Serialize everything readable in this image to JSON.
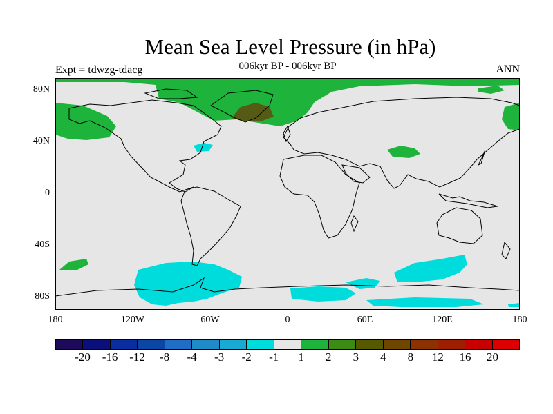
{
  "title": "Mean Sea Level Pressure (in hPa)",
  "subtitle_center": "006kyr BP - 006kyr BP",
  "subtitle_left": "Expt = tdwzg-tdacg",
  "subtitle_right": "ANN",
  "lat_labels": [
    "80N",
    "40N",
    "0",
    "40S",
    "80S"
  ],
  "lon_labels": [
    "180",
    "120W",
    "60W",
    "0",
    "60E",
    "120E",
    "180"
  ],
  "colorbar": {
    "colors": [
      "#1e0a5a",
      "#0a0f7a",
      "#0a2da0",
      "#0a46a5",
      "#1e6ec8",
      "#1e8cc8",
      "#18aad2",
      "#00dcdc",
      "#e6e6e6",
      "#1eb43c",
      "#3c8c14",
      "#555a00",
      "#6e4600",
      "#8c3200",
      "#a01e00",
      "#c80000",
      "#dc0000"
    ],
    "labels": [
      "-20",
      "-16",
      "-12",
      "-8",
      "-4",
      "-3",
      "-2",
      "-1",
      "1",
      "2",
      "3",
      "4",
      "8",
      "12",
      "16",
      "20"
    ]
  },
  "map_colors": {
    "background": "#e6e6e6",
    "positive": "#1eb43c",
    "strong_positive": "#555a14",
    "negative": "#00dcdc",
    "coastline": "#000000"
  }
}
